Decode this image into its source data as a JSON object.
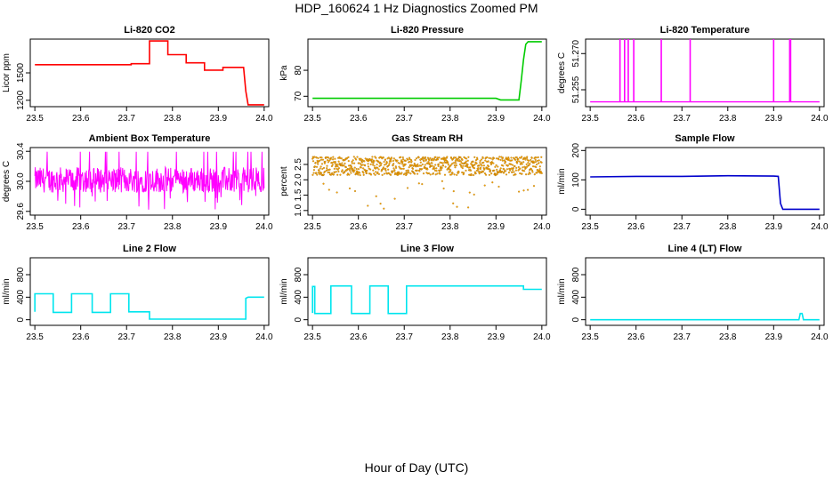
{
  "page": {
    "title": "HDP_160624  1 Hz Diagnostics Zoomed PM",
    "xlabel": "Hour of Day (UTC)"
  },
  "colors": {
    "red": "#ff0000",
    "green": "#00cc00",
    "magenta": "#ff00ff",
    "orange": "#ffa500",
    "blue": "#0000cc",
    "cyan": "#00e5ee"
  },
  "chart_data": [
    {
      "id": "co2",
      "type": "line",
      "title": "Li-820 CO2",
      "ylabel": "Licor ppm",
      "color": "#ff0000",
      "xlim": [
        23.49,
        24.01
      ],
      "ylim": [
        1130,
        1870
      ],
      "xticks": [
        23.5,
        23.6,
        23.7,
        23.8,
        23.9,
        24.0
      ],
      "xticklabels": [
        "23.5",
        "23.6",
        "23.7",
        "23.8",
        "23.9",
        "24.0"
      ],
      "yticks": [
        1200,
        1500
      ],
      "yticklabels": [
        "1200",
        "1500"
      ],
      "series": [
        {
          "x": [
            23.5,
            23.71,
            23.71,
            23.75,
            23.75,
            23.79,
            23.79,
            23.83,
            23.83,
            23.87,
            23.87,
            23.91,
            23.91,
            23.955,
            23.96,
            23.965,
            24.0
          ],
          "y": [
            1590,
            1590,
            1600,
            1600,
            1850,
            1850,
            1700,
            1700,
            1610,
            1610,
            1530,
            1530,
            1560,
            1560,
            1300,
            1150,
            1150
          ]
        }
      ]
    },
    {
      "id": "pressure",
      "type": "line",
      "title": "Li-820 Pressure",
      "ylabel": "kPa",
      "color": "#00cc00",
      "xlim": [
        23.49,
        24.01
      ],
      "ylim": [
        66,
        92
      ],
      "xticks": [
        23.5,
        23.6,
        23.7,
        23.8,
        23.9,
        24.0
      ],
      "xticklabels": [
        "23.5",
        "23.6",
        "23.7",
        "23.8",
        "23.9",
        "24.0"
      ],
      "yticks": [
        70,
        80
      ],
      "yticklabels": [
        "70",
        "80"
      ],
      "series": [
        {
          "x": [
            23.5,
            23.9,
            23.91,
            23.95,
            23.955,
            23.96,
            23.965,
            23.97,
            24.0
          ],
          "y": [
            69.2,
            69.2,
            68.6,
            68.6,
            76,
            84,
            90,
            91,
            91
          ]
        }
      ]
    },
    {
      "id": "licor-temp",
      "type": "line",
      "title": "Li-820 Temperature",
      "ylabel": "degrees C",
      "color": "#ff00ff",
      "xlim": [
        23.49,
        24.01
      ],
      "ylim": [
        51.248,
        51.276
      ],
      "xticks": [
        23.5,
        23.6,
        23.7,
        23.8,
        23.9,
        24.0
      ],
      "xticklabels": [
        "23.5",
        "23.6",
        "23.7",
        "23.8",
        "23.9",
        "24.0"
      ],
      "yticks": [
        51.255,
        51.27
      ],
      "yticklabels": [
        "51.255",
        "51.270"
      ],
      "baseline": 51.25,
      "spike_top": 51.276,
      "spikes": [
        23.565,
        23.575,
        23.583,
        23.595,
        23.655,
        23.718,
        23.9,
        23.935,
        23.937
      ]
    },
    {
      "id": "box-temp",
      "type": "line",
      "title": "Ambient Box Temperature",
      "ylabel": "degrees C",
      "color": "#ff00ff",
      "xlim": [
        23.49,
        24.01
      ],
      "ylim": [
        29.55,
        30.45
      ],
      "xticks": [
        23.5,
        23.6,
        23.7,
        23.8,
        23.9,
        24.0
      ],
      "xticklabels": [
        "23.5",
        "23.6",
        "23.7",
        "23.8",
        "23.9",
        "24.0"
      ],
      "yticks": [
        29.6,
        30.0,
        30.4
      ],
      "yticklabels": [
        "29.6",
        "30.0",
        "30.4"
      ],
      "noise": {
        "center": 30.02,
        "amplitude": 0.17,
        "dip_to": 29.62
      }
    },
    {
      "id": "rh",
      "type": "scatter",
      "title": "Gas Stream RH",
      "ylabel": "percent",
      "color": "#ffa500",
      "edge_color": "#996600",
      "xlim": [
        23.49,
        24.01
      ],
      "ylim": [
        0.85,
        3.05
      ],
      "xticks": [
        23.5,
        23.6,
        23.7,
        23.8,
        23.9,
        24.0
      ],
      "xticklabels": [
        "23.5",
        "23.6",
        "23.7",
        "23.8",
        "23.9",
        "24.0"
      ],
      "yticks": [
        1.0,
        1.5,
        2.0,
        2.5
      ],
      "yticklabels": [
        "1.0",
        "1.5",
        "2.0",
        "2.5"
      ],
      "noise": {
        "center": 2.45,
        "amplitude": 0.3,
        "dip_to": 1.0
      }
    },
    {
      "id": "sample-flow",
      "type": "line",
      "title": "Sample Flow",
      "ylabel": "ml/min",
      "color": "#0000cc",
      "xlim": [
        23.49,
        24.01
      ],
      "ylim": [
        -20,
        210
      ],
      "xticks": [
        23.5,
        23.6,
        23.7,
        23.8,
        23.9,
        24.0
      ],
      "xticklabels": [
        "23.5",
        "23.6",
        "23.7",
        "23.8",
        "23.9",
        "24.0"
      ],
      "yticks": [
        0,
        100,
        200
      ],
      "yticklabels": [
        "0",
        "100",
        "200"
      ],
      "series": [
        {
          "x": [
            23.5,
            23.6,
            23.7,
            23.8,
            23.9,
            23.91,
            23.915,
            23.92,
            24.0
          ],
          "y": [
            110,
            112,
            112,
            114,
            113,
            112,
            20,
            0,
            0
          ]
        }
      ]
    },
    {
      "id": "line2",
      "type": "line",
      "title": "Line 2 Flow",
      "ylabel": "ml/min",
      "color": "#00e5ee",
      "xlim": [
        23.49,
        24.01
      ],
      "ylim": [
        -100,
        1100
      ],
      "xticks": [
        23.5,
        23.6,
        23.7,
        23.8,
        23.9,
        24.0
      ],
      "xticklabels": [
        "23.5",
        "23.6",
        "23.7",
        "23.8",
        "23.9",
        "24.0"
      ],
      "yticks": [
        0,
        400,
        800
      ],
      "yticklabels": [
        "0",
        "400",
        "800"
      ],
      "series": [
        {
          "x": [
            23.5,
            23.5,
            23.54,
            23.54,
            23.58,
            23.58,
            23.625,
            23.625,
            23.665,
            23.665,
            23.705,
            23.705,
            23.75,
            23.75,
            23.96,
            23.96,
            23.965,
            24.0
          ],
          "y": [
            140,
            460,
            460,
            130,
            130,
            460,
            460,
            130,
            130,
            460,
            460,
            140,
            140,
            10,
            10,
            380,
            400,
            400
          ]
        }
      ]
    },
    {
      "id": "line3",
      "type": "line",
      "title": "Line 3 Flow",
      "ylabel": "ml/min",
      "color": "#00e5ee",
      "xlim": [
        23.49,
        24.01
      ],
      "ylim": [
        -100,
        1100
      ],
      "xticks": [
        23.5,
        23.6,
        23.7,
        23.8,
        23.9,
        24.0
      ],
      "xticklabels": [
        "23.5",
        "23.6",
        "23.7",
        "23.8",
        "23.9",
        "24.0"
      ],
      "yticks": [
        0,
        400,
        800
      ],
      "yticklabels": [
        "0",
        "400",
        "800"
      ],
      "series": [
        {
          "x": [
            23.5,
            23.5,
            23.505,
            23.505,
            23.54,
            23.54,
            23.585,
            23.585,
            23.625,
            23.625,
            23.665,
            23.665,
            23.705,
            23.705,
            23.96,
            23.96,
            24.0
          ],
          "y": [
            120,
            590,
            590,
            110,
            110,
            600,
            600,
            110,
            110,
            600,
            600,
            110,
            110,
            600,
            600,
            540,
            540
          ]
        }
      ]
    },
    {
      "id": "line4",
      "type": "line",
      "title": "Line 4 (LT) Flow",
      "ylabel": "ml/min",
      "color": "#00e5ee",
      "xlim": [
        23.49,
        24.01
      ],
      "ylim": [
        -100,
        1100
      ],
      "xticks": [
        23.5,
        23.6,
        23.7,
        23.8,
        23.9,
        24.0
      ],
      "xticklabels": [
        "23.5",
        "23.6",
        "23.7",
        "23.8",
        "23.9",
        "24.0"
      ],
      "yticks": [
        0,
        400,
        800
      ],
      "yticklabels": [
        "0",
        "400",
        "800"
      ],
      "series": [
        {
          "x": [
            23.5,
            23.955,
            23.958,
            23.962,
            23.965,
            24.0
          ],
          "y": [
            0,
            0,
            110,
            110,
            0,
            0
          ]
        }
      ]
    }
  ]
}
